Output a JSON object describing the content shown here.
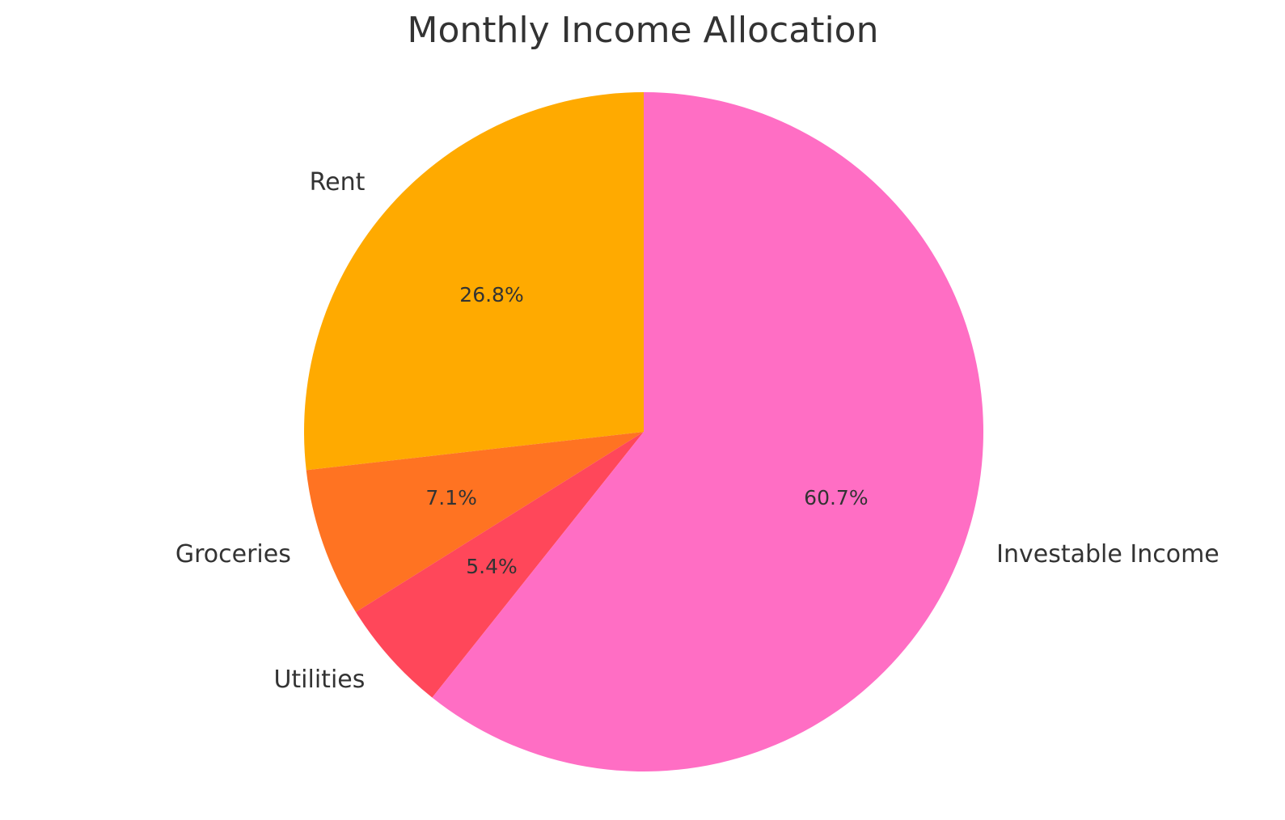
{
  "chart_data": {
    "type": "pie",
    "title": "Monthly Income Allocation",
    "start_angle_deg": 90,
    "direction": "counterclockwise",
    "slices": [
      {
        "label": "Rent",
        "value": 26.8,
        "pct_label": "26.8%",
        "color": "#FFAA00"
      },
      {
        "label": "Groceries",
        "value": 7.1,
        "pct_label": "7.1%",
        "color": "#FF7322"
      },
      {
        "label": "Utilities",
        "value": 5.4,
        "pct_label": "5.4%",
        "color": "#FF475A"
      },
      {
        "label": "Investable Income",
        "value": 60.7,
        "pct_label": "60.7%",
        "color": "#FF6EC4"
      }
    ]
  }
}
